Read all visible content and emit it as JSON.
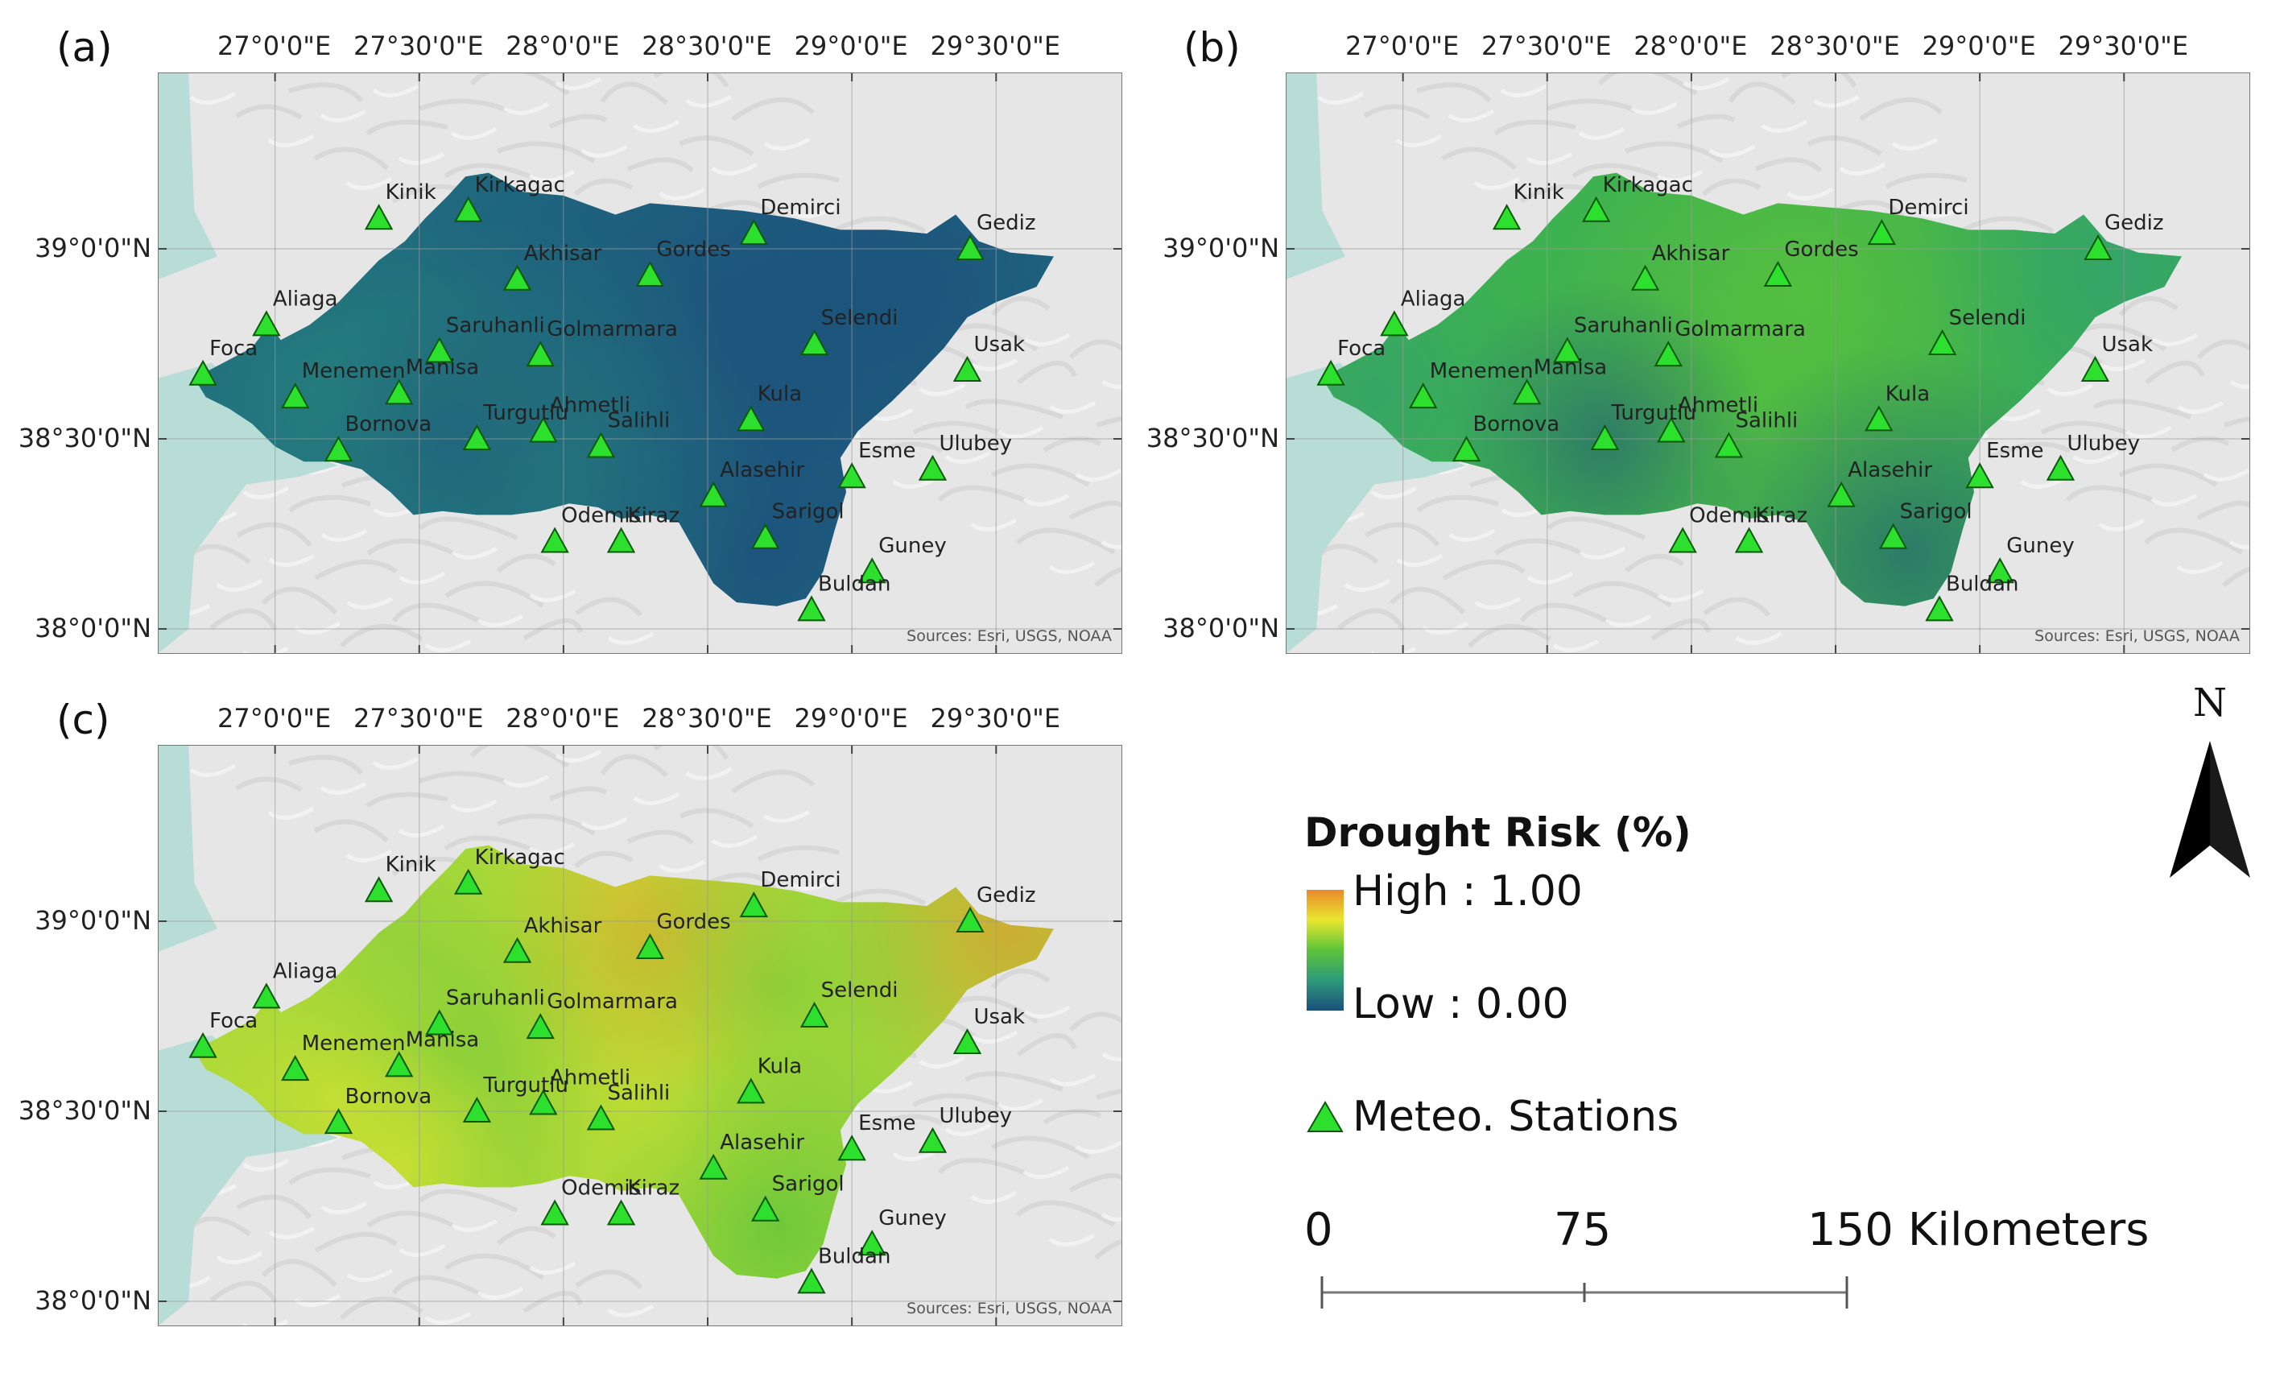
{
  "panels": [
    {
      "label": "(a)",
      "credit": "Sources: Esri, USGS, NOAA",
      "scheme": "a"
    },
    {
      "label": "(b)",
      "credit": "Sources: Esri, USGS, NOAA",
      "scheme": "b"
    },
    {
      "label": "(c)",
      "credit": "Sources: Esri, USGS, NOAA",
      "scheme": "c"
    }
  ],
  "longitude_ticks": [
    "27°0'0\"E",
    "27°30'0\"E",
    "28°0'0\"E",
    "28°30'0\"E",
    "29°0'0\"E",
    "29°30'0\"E"
  ],
  "latitude_ticks": [
    "39°0'0\"N",
    "38°30'0\"N",
    "38°0'0\"N"
  ],
  "stations": [
    {
      "name": "Kinik",
      "lon": 27.36,
      "lat": 39.08
    },
    {
      "name": "Kirkagac",
      "lon": 27.67,
      "lat": 39.1
    },
    {
      "name": "Demirci",
      "lon": 28.66,
      "lat": 39.04
    },
    {
      "name": "Gediz",
      "lon": 29.41,
      "lat": 39.0
    },
    {
      "name": "Akhisar",
      "lon": 27.84,
      "lat": 38.92
    },
    {
      "name": "Gordes",
      "lon": 28.3,
      "lat": 38.93
    },
    {
      "name": "Aliaga",
      "lon": 26.97,
      "lat": 38.8
    },
    {
      "name": "Selendi",
      "lon": 28.87,
      "lat": 38.75
    },
    {
      "name": "Foca",
      "lon": 26.75,
      "lat": 38.67
    },
    {
      "name": "Saruhanli",
      "lon": 27.57,
      "lat": 38.73
    },
    {
      "name": "Golmarmara",
      "lon": 27.92,
      "lat": 38.72
    },
    {
      "name": "Usak",
      "lon": 29.4,
      "lat": 38.68
    },
    {
      "name": "Menemen",
      "lon": 27.07,
      "lat": 38.61
    },
    {
      "name": "Manisa",
      "lon": 27.43,
      "lat": 38.62
    },
    {
      "name": "Ahmetli",
      "lon": 27.93,
      "lat": 38.52
    },
    {
      "name": "Kula",
      "lon": 28.65,
      "lat": 38.55
    },
    {
      "name": "Turgutlu",
      "lon": 27.7,
      "lat": 38.5
    },
    {
      "name": "Salihli",
      "lon": 28.13,
      "lat": 38.48
    },
    {
      "name": "Bornova",
      "lon": 27.22,
      "lat": 38.47
    },
    {
      "name": "Esme",
      "lon": 29.0,
      "lat": 38.4
    },
    {
      "name": "Ulubey",
      "lon": 29.28,
      "lat": 38.42
    },
    {
      "name": "Alasehir",
      "lon": 28.52,
      "lat": 38.35
    },
    {
      "name": "Sarigol",
      "lon": 28.7,
      "lat": 38.24
    },
    {
      "name": "Odemis",
      "lon": 27.97,
      "lat": 38.23
    },
    {
      "name": "Kiraz",
      "lon": 28.2,
      "lat": 38.23
    },
    {
      "name": "Guney",
      "lon": 29.07,
      "lat": 38.15
    },
    {
      "name": "Buldan",
      "lon": 28.86,
      "lat": 38.05
    }
  ],
  "legend": {
    "title": "Drought Risk (%)",
    "high_label": "High : 1.00",
    "low_label": "Low : 0.00",
    "stations_label": "Meteo. Stations",
    "scale_ticks": [
      "0",
      "75"
    ],
    "scale_end": "150 Kilometers",
    "north": "N"
  },
  "colors": {
    "station_fill": "#2ee02e",
    "station_stroke": "#0a5a0a",
    "sea": "#b8dcd6",
    "hillshade": "#e6e6e6",
    "ramp": [
      "#1c4f7c",
      "#2e9a7a",
      "#5cc33a",
      "#e8e62e",
      "#e98a2c"
    ]
  }
}
